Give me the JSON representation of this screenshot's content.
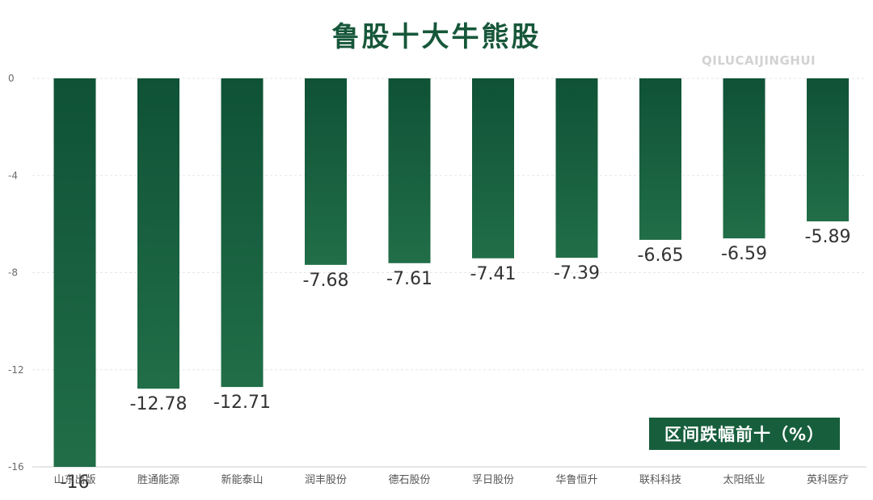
{
  "chart_data": {
    "type": "bar",
    "title": "鲁股十大牛熊股",
    "watermark": "QILUCAIJINGHUI",
    "legend_label": "区间跌幅前十（%）",
    "categories": [
      "山东出版",
      "胜通能源",
      "新能泰山",
      "润丰股份",
      "德石股份",
      "孚日股份",
      "华鲁恒升",
      "联科科技",
      "太阳纸业",
      "英科医疗"
    ],
    "values": [
      -16,
      -12.78,
      -12.71,
      -7.68,
      -7.61,
      -7.41,
      -7.39,
      -6.65,
      -6.59,
      -5.89
    ],
    "value_labels": [
      "-16",
      "-12.78",
      "-12.71",
      "-7.68",
      "-7.61",
      "-7.41",
      "-7.39",
      "-6.65",
      "-6.59",
      "-5.89"
    ],
    "y_ticks": [
      "0",
      "-4",
      "-8",
      "-12",
      "-16"
    ],
    "ylim": [
      -16,
      0
    ],
    "grid": true,
    "legend_position": "bottom-right",
    "colors": {
      "bar_top": "#0f5236",
      "bar_bottom": "#216e48",
      "title": "#17573a",
      "badge": "#175e3c"
    }
  }
}
